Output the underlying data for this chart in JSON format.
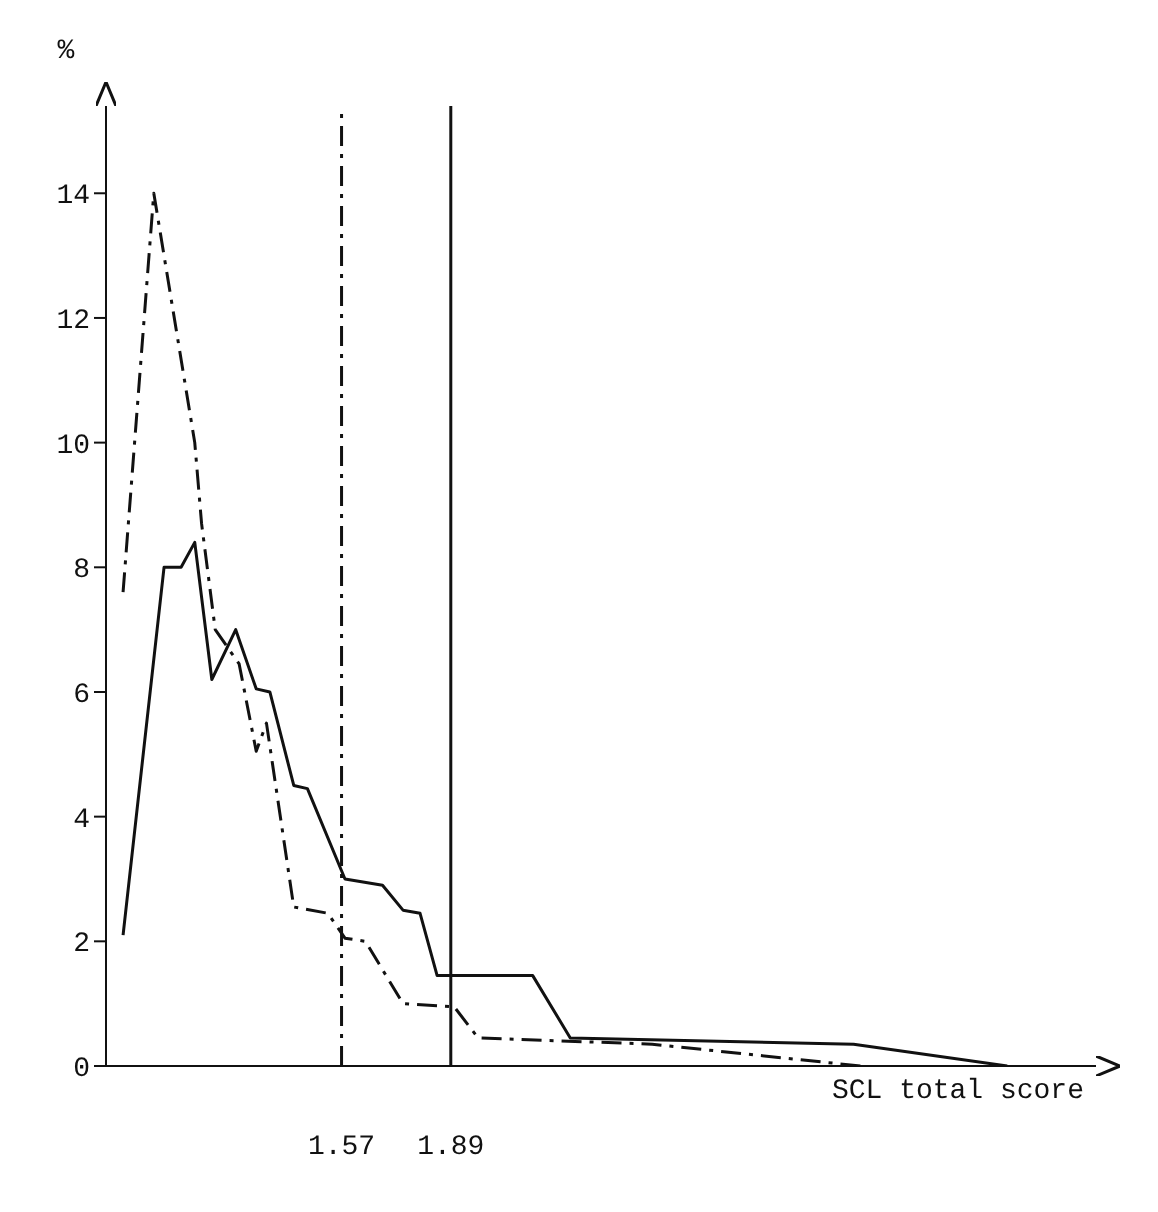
{
  "chart_data": {
    "type": "line",
    "xlabel": "SCL total score",
    "ylabel": "%",
    "xlim": [
      0.88,
      3.78
    ],
    "xticks": [
      1.57,
      1.89
    ],
    "ylim": [
      0,
      15.4
    ],
    "yticks": [
      0,
      2,
      4,
      6,
      8,
      10,
      12,
      14
    ],
    "grid": false,
    "legend": false,
    "marker": "none",
    "series": [
      {
        "color": "#111111",
        "line_style": "solid",
        "x": [
          0.93,
          1.05,
          1.1,
          1.14,
          1.19,
          1.26,
          1.32,
          1.36,
          1.43,
          1.47,
          1.58,
          1.69,
          1.75,
          1.8,
          1.85,
          2.13,
          2.24,
          3.07,
          3.52
        ],
        "values": [
          2.1,
          8.0,
          8.0,
          8.4,
          6.2,
          7.0,
          6.05,
          6.0,
          4.5,
          4.45,
          3.0,
          2.9,
          2.5,
          2.45,
          1.45,
          1.45,
          0.45,
          0.35,
          0.0
        ]
      },
      {
        "color": "#111111",
        "line_style": "dashed",
        "x": [
          0.93,
          1.02,
          1.14,
          1.16,
          1.2,
          1.27,
          1.32,
          1.35,
          1.43,
          1.53,
          1.58,
          1.64,
          1.75,
          1.9,
          1.97,
          2.48,
          3.09
        ],
        "values": [
          7.6,
          14.0,
          10.0,
          8.7,
          7.0,
          6.45,
          5.05,
          5.5,
          2.55,
          2.45,
          2.05,
          2.0,
          1.0,
          0.95,
          0.45,
          0.35,
          0.0
        ]
      }
    ],
    "ref_lines": [
      {
        "axis": "x",
        "value": 1.57,
        "line_style": "dashed",
        "color": "#111111"
      },
      {
        "axis": "x",
        "value": 1.89,
        "line_style": "solid",
        "color": "#111111"
      }
    ]
  }
}
